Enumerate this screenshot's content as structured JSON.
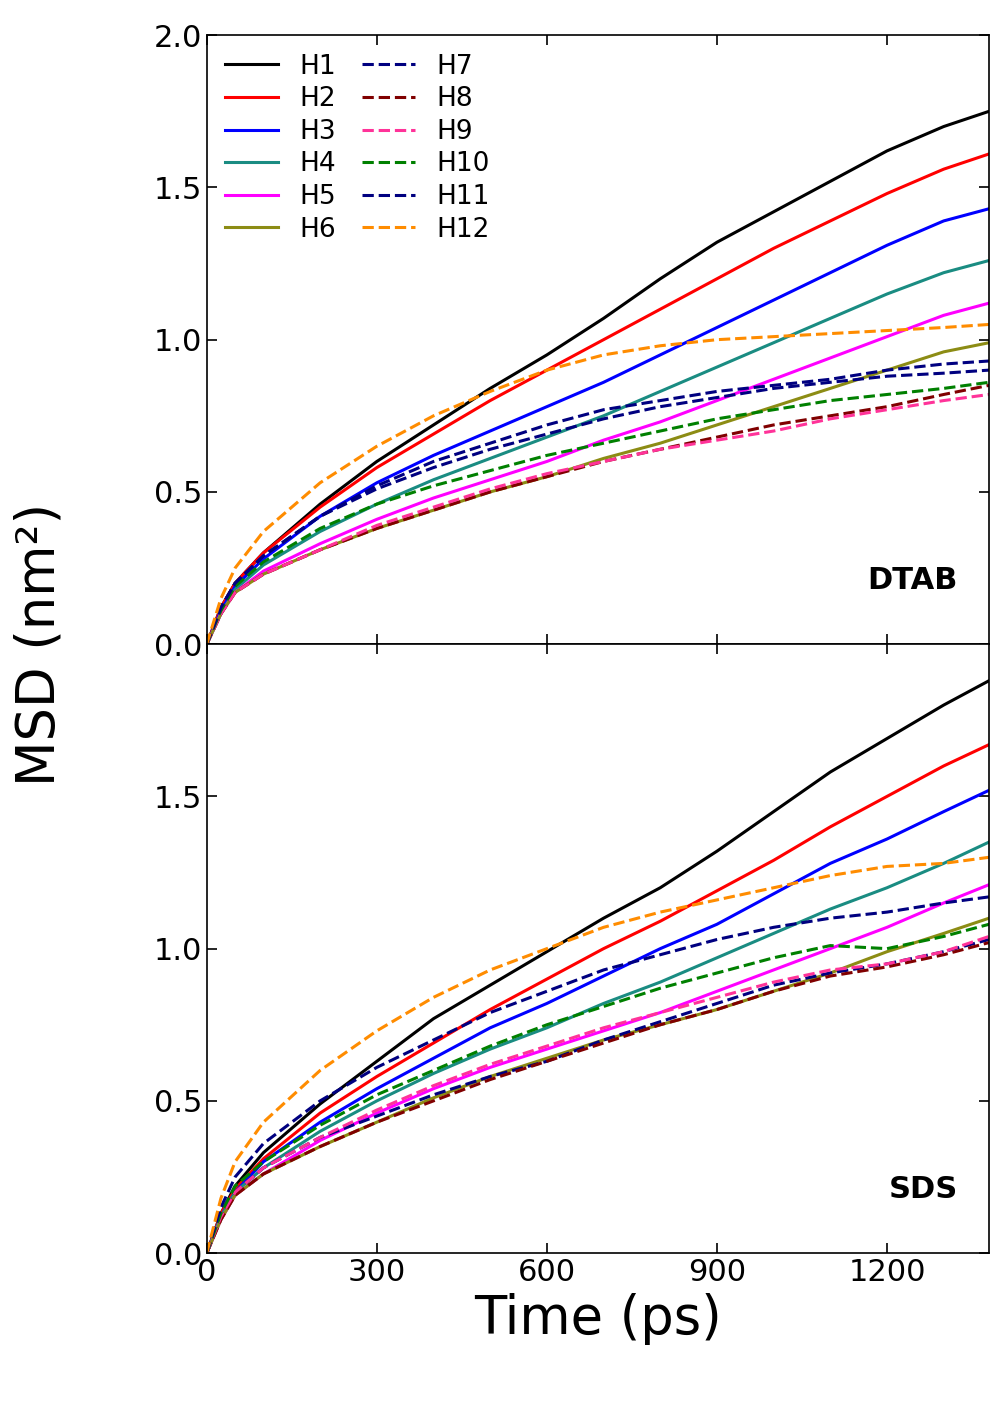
{
  "chart_data": [
    {
      "type": "line",
      "annotation": "DTAB",
      "ylabel": "MSD (nm²)",
      "x": [
        0,
        25,
        50,
        100,
        200,
        300,
        400,
        500,
        600,
        700,
        800,
        900,
        1000,
        1100,
        1200,
        1300,
        1380
      ],
      "xlim": [
        0,
        1380
      ],
      "xticks": [
        0,
        300,
        600,
        900,
        1200
      ],
      "ylim": [
        0,
        2.0
      ],
      "yticks": [
        {
          "value": 0,
          "label": "0.0"
        },
        {
          "value": 0.5,
          "label": "0.5"
        },
        {
          "value": 1.0,
          "label": "1.0"
        },
        {
          "value": 1.5,
          "label": "1.5"
        },
        {
          "value": 2.0,
          "label": "2.0"
        }
      ],
      "tick_labels": "y",
      "legend": "upper left",
      "series": [
        {
          "name": "H1",
          "color": "#000000",
          "line_style": "solid",
          "values": [
            0,
            0.12,
            0.2,
            0.3,
            0.46,
            0.6,
            0.72,
            0.84,
            0.95,
            1.07,
            1.2,
            1.32,
            1.42,
            1.52,
            1.62,
            1.7,
            1.75
          ]
        },
        {
          "name": "H2",
          "color": "#ff0000",
          "line_style": "solid",
          "values": [
            0,
            0.12,
            0.2,
            0.3,
            0.45,
            0.58,
            0.69,
            0.8,
            0.9,
            1.0,
            1.1,
            1.2,
            1.3,
            1.39,
            1.48,
            1.56,
            1.61
          ]
        },
        {
          "name": "H3",
          "color": "#0000ff",
          "line_style": "solid",
          "values": [
            0,
            0.11,
            0.19,
            0.28,
            0.42,
            0.53,
            0.62,
            0.7,
            0.78,
            0.86,
            0.95,
            1.04,
            1.13,
            1.22,
            1.31,
            1.39,
            1.43
          ]
        },
        {
          "name": "H4",
          "color": "#1a8c82",
          "line_style": "solid",
          "values": [
            0,
            0.1,
            0.18,
            0.26,
            0.37,
            0.46,
            0.54,
            0.61,
            0.68,
            0.75,
            0.83,
            0.91,
            0.99,
            1.07,
            1.15,
            1.22,
            1.26
          ]
        },
        {
          "name": "H5",
          "color": "#ff00ff",
          "line_style": "solid",
          "values": [
            0,
            0.1,
            0.17,
            0.24,
            0.33,
            0.41,
            0.48,
            0.54,
            0.6,
            0.67,
            0.73,
            0.8,
            0.87,
            0.94,
            1.01,
            1.08,
            1.12
          ]
        },
        {
          "name": "H6",
          "color": "#8c8c14",
          "line_style": "solid",
          "values": [
            0,
            0.1,
            0.17,
            0.23,
            0.31,
            0.38,
            0.44,
            0.5,
            0.55,
            0.61,
            0.66,
            0.72,
            0.78,
            0.84,
            0.9,
            0.96,
            0.99
          ]
        },
        {
          "name": "H7",
          "color": "#000080",
          "line_style": "dashed",
          "values": [
            0,
            0.12,
            0.2,
            0.29,
            0.42,
            0.51,
            0.58,
            0.64,
            0.69,
            0.74,
            0.78,
            0.81,
            0.84,
            0.86,
            0.88,
            0.89,
            0.9
          ]
        },
        {
          "name": "H8",
          "color": "#800000",
          "line_style": "dashed",
          "values": [
            0,
            0.1,
            0.17,
            0.23,
            0.31,
            0.38,
            0.44,
            0.5,
            0.55,
            0.6,
            0.64,
            0.68,
            0.72,
            0.75,
            0.78,
            0.82,
            0.85
          ]
        },
        {
          "name": "H9",
          "color": "#ff3399",
          "line_style": "dashed",
          "values": [
            0,
            0.1,
            0.17,
            0.23,
            0.31,
            0.39,
            0.45,
            0.51,
            0.56,
            0.6,
            0.64,
            0.67,
            0.7,
            0.74,
            0.77,
            0.8,
            0.82
          ]
        },
        {
          "name": "H10",
          "color": "#008000",
          "line_style": "dashed",
          "values": [
            0,
            0.11,
            0.19,
            0.27,
            0.38,
            0.46,
            0.52,
            0.57,
            0.62,
            0.66,
            0.7,
            0.74,
            0.77,
            0.8,
            0.82,
            0.84,
            0.86
          ]
        },
        {
          "name": "H11",
          "color": "#000080",
          "line_style": "dashed",
          "values": [
            0,
            0.12,
            0.2,
            0.29,
            0.42,
            0.52,
            0.6,
            0.66,
            0.72,
            0.77,
            0.8,
            0.83,
            0.85,
            0.87,
            0.9,
            0.92,
            0.93
          ]
        },
        {
          "name": "H12",
          "color": "#ff8c00",
          "line_style": "dashed",
          "values": [
            0,
            0.15,
            0.25,
            0.37,
            0.53,
            0.65,
            0.75,
            0.83,
            0.9,
            0.95,
            0.98,
            1.0,
            1.01,
            1.02,
            1.03,
            1.04,
            1.05
          ]
        }
      ]
    },
    {
      "type": "line",
      "annotation": "SDS",
      "xlabel": "Time (ps)",
      "x": [
        0,
        25,
        50,
        100,
        200,
        300,
        400,
        500,
        600,
        700,
        800,
        900,
        1000,
        1100,
        1200,
        1300,
        1380
      ],
      "xlim": [
        0,
        1380
      ],
      "xticks": [
        0,
        300,
        600,
        900,
        1200
      ],
      "ylim": [
        0,
        2.0
      ],
      "yticks": [
        {
          "value": 0,
          "label": "0.0"
        },
        {
          "value": 0.5,
          "label": "0.5"
        },
        {
          "value": 1.0,
          "label": "1.0"
        },
        {
          "value": 1.5,
          "label": "1.5"
        }
      ],
      "series": [
        {
          "name": "H1",
          "color": "#000000",
          "line_style": "solid",
          "values": [
            0,
            0.13,
            0.22,
            0.33,
            0.49,
            0.63,
            0.77,
            0.88,
            0.99,
            1.1,
            1.2,
            1.32,
            1.45,
            1.58,
            1.69,
            1.8,
            1.88
          ]
        },
        {
          "name": "H2",
          "color": "#ff0000",
          "line_style": "solid",
          "values": [
            0,
            0.13,
            0.21,
            0.31,
            0.46,
            0.58,
            0.69,
            0.8,
            0.9,
            1.0,
            1.09,
            1.19,
            1.29,
            1.4,
            1.5,
            1.6,
            1.67
          ]
        },
        {
          "name": "H3",
          "color": "#0000ff",
          "line_style": "solid",
          "values": [
            0,
            0.12,
            0.2,
            0.3,
            0.43,
            0.54,
            0.64,
            0.74,
            0.82,
            0.91,
            1.0,
            1.08,
            1.18,
            1.28,
            1.36,
            1.45,
            1.52
          ]
        },
        {
          "name": "H4",
          "color": "#1a8c82",
          "line_style": "solid",
          "values": [
            0,
            0.12,
            0.2,
            0.28,
            0.4,
            0.5,
            0.59,
            0.67,
            0.74,
            0.82,
            0.89,
            0.97,
            1.05,
            1.13,
            1.2,
            1.28,
            1.35
          ]
        },
        {
          "name": "H5",
          "color": "#ff00ff",
          "line_style": "solid",
          "values": [
            0,
            0.11,
            0.19,
            0.26,
            0.37,
            0.46,
            0.54,
            0.61,
            0.67,
            0.73,
            0.79,
            0.86,
            0.93,
            1.0,
            1.07,
            1.15,
            1.21
          ]
        },
        {
          "name": "H6",
          "color": "#8c8c14",
          "line_style": "solid",
          "values": [
            0,
            0.11,
            0.19,
            0.26,
            0.35,
            0.43,
            0.51,
            0.58,
            0.64,
            0.7,
            0.75,
            0.8,
            0.86,
            0.92,
            0.99,
            1.05,
            1.1
          ]
        },
        {
          "name": "H7",
          "color": "#000080",
          "line_style": "dashed",
          "values": [
            0,
            0.12,
            0.2,
            0.28,
            0.38,
            0.45,
            0.52,
            0.58,
            0.63,
            0.7,
            0.76,
            0.82,
            0.88,
            0.92,
            0.95,
            0.99,
            1.03
          ]
        },
        {
          "name": "H8",
          "color": "#800000",
          "line_style": "dashed",
          "values": [
            0,
            0.11,
            0.19,
            0.26,
            0.35,
            0.43,
            0.5,
            0.57,
            0.63,
            0.69,
            0.75,
            0.8,
            0.86,
            0.91,
            0.94,
            0.98,
            1.02
          ]
        },
        {
          "name": "H9",
          "color": "#ff3399",
          "line_style": "dashed",
          "values": [
            0,
            0.12,
            0.2,
            0.28,
            0.38,
            0.47,
            0.55,
            0.62,
            0.68,
            0.74,
            0.79,
            0.84,
            0.89,
            0.93,
            0.95,
            0.99,
            1.04
          ]
        },
        {
          "name": "H10",
          "color": "#008000",
          "line_style": "dashed",
          "values": [
            0,
            0.13,
            0.22,
            0.3,
            0.42,
            0.52,
            0.6,
            0.68,
            0.75,
            0.81,
            0.87,
            0.92,
            0.97,
            1.01,
            1.0,
            1.04,
            1.08
          ]
        },
        {
          "name": "H11",
          "color": "#000080",
          "line_style": "dashed",
          "values": [
            0,
            0.15,
            0.25,
            0.36,
            0.5,
            0.61,
            0.7,
            0.79,
            0.86,
            0.93,
            0.98,
            1.03,
            1.07,
            1.1,
            1.12,
            1.15,
            1.17
          ]
        },
        {
          "name": "H12",
          "color": "#ff8c00",
          "line_style": "dashed",
          "values": [
            0,
            0.18,
            0.3,
            0.43,
            0.6,
            0.73,
            0.84,
            0.93,
            1.0,
            1.07,
            1.12,
            1.16,
            1.2,
            1.24,
            1.27,
            1.28,
            1.3
          ]
        }
      ]
    }
  ]
}
